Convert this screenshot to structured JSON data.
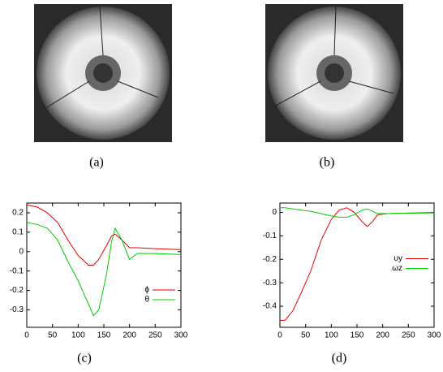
{
  "panels": [
    {
      "caption": "(a)"
    },
    {
      "caption": "(b)"
    }
  ],
  "chart_data": [
    {
      "type": "line",
      "caption": "(c)",
      "xlim": [
        0,
        300
      ],
      "xticks": [
        0,
        50,
        100,
        150,
        200,
        250,
        300
      ],
      "ylim": [
        -0.39,
        0.25
      ],
      "yticks": [
        0.2,
        0.1,
        0,
        -0.1,
        -0.2,
        -0.3
      ],
      "legend": "lower right",
      "x": [
        0,
        20,
        40,
        60,
        80,
        100,
        120,
        130,
        140,
        155,
        165,
        172,
        185,
        200,
        215,
        250,
        300
      ],
      "series": [
        {
          "name": "ϕ",
          "color": "#e00000",
          "values": [
            0.24,
            0.23,
            0.2,
            0.15,
            0.06,
            -0.02,
            -0.07,
            -0.07,
            -0.04,
            0.03,
            0.08,
            0.09,
            0.06,
            0.02,
            0.02,
            0.015,
            0.01
          ]
        },
        {
          "name": "θ",
          "color": "#00cc00",
          "values": [
            0.15,
            0.14,
            0.12,
            0.06,
            -0.05,
            -0.15,
            -0.27,
            -0.33,
            -0.3,
            -0.12,
            0.05,
            0.12,
            0.06,
            -0.04,
            -0.01,
            -0.01,
            -0.015
          ]
        }
      ]
    },
    {
      "type": "line",
      "caption": "(d)",
      "xlim": [
        0,
        300
      ],
      "xticks": [
        0,
        50,
        100,
        150,
        200,
        250,
        300
      ],
      "ylim": [
        -0.49,
        0.04
      ],
      "yticks": [
        0,
        -0.1,
        -0.2,
        -0.3,
        -0.4
      ],
      "legend": "center right",
      "x": [
        0,
        10,
        25,
        40,
        60,
        80,
        100,
        115,
        130,
        145,
        160,
        170,
        180,
        190,
        210,
        250,
        300
      ],
      "series": [
        {
          "name": "υy",
          "color": "#e00000",
          "values": [
            -0.46,
            -0.46,
            -0.42,
            -0.35,
            -0.25,
            -0.12,
            -0.03,
            0.01,
            0.02,
            0.0,
            -0.04,
            -0.06,
            -0.04,
            -0.01,
            -0.005,
            -0.003,
            0
          ]
        },
        {
          "name": "ωz",
          "color": "#00cc00",
          "values": [
            0.02,
            0.02,
            0.015,
            0.01,
            0.005,
            -0.005,
            -0.015,
            -0.02,
            -0.02,
            -0.01,
            0.01,
            0.015,
            0.005,
            -0.005,
            -0.005,
            -0.003,
            -0.002
          ]
        }
      ]
    }
  ]
}
